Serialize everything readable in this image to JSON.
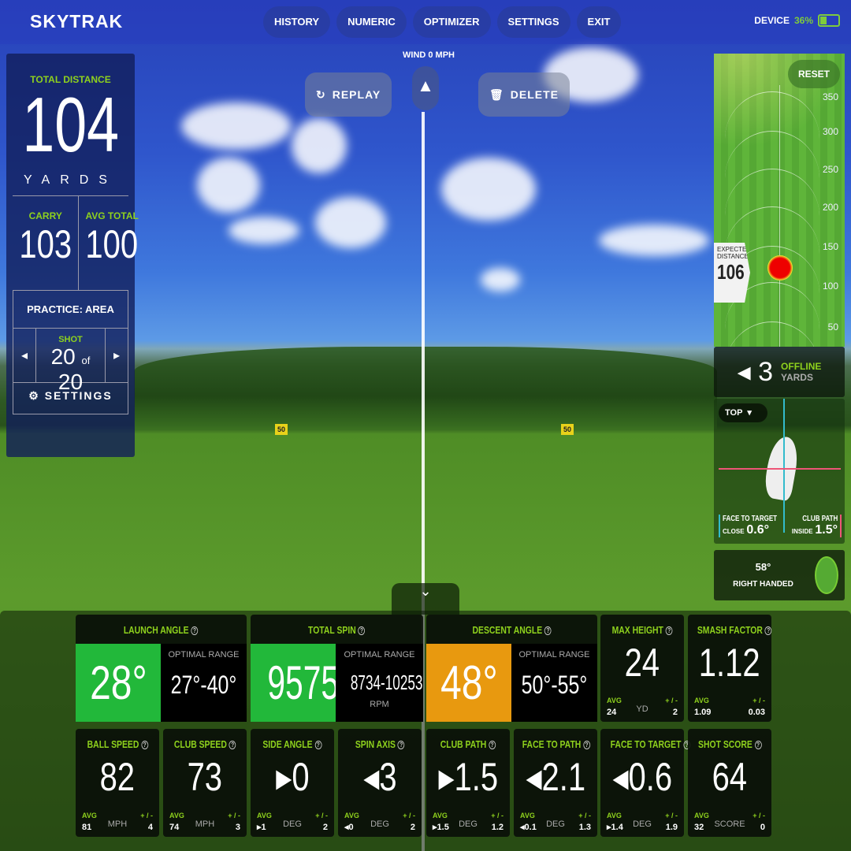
{
  "app": {
    "logo": "SKYTRAK",
    "nav": [
      "HISTORY",
      "NUMERIC",
      "OPTIMIZER",
      "SETTINGS",
      "EXIT"
    ],
    "device_label": "DEVICE",
    "battery": "36%",
    "battery_level": 0.36
  },
  "scene": {
    "wind": "WIND 0 MPH",
    "replay": "REPLAY",
    "delete": "DELETE",
    "marker": "50"
  },
  "left": {
    "total_label": "TOTAL DISTANCE",
    "total": "104",
    "units": "YARDS",
    "carry_label": "CARRY",
    "carry": "103",
    "avg_label": "AVG TOTAL",
    "avg": "100",
    "mode": "PRACTICE: AREA",
    "shot_label": "SHOT",
    "shot": "20",
    "of": "of",
    "shot_total": "20",
    "settings": "SETTINGS"
  },
  "right": {
    "reset": "RESET",
    "ticks": [
      "350",
      "300",
      "250",
      "200",
      "150",
      "100",
      "50"
    ],
    "expected_label1": "EXPECTED",
    "expected_label2": "DISTANCE",
    "expected": "106",
    "offline": "3",
    "offline_label": "OFFLINE",
    "offline_units": "YARDS",
    "view": "TOP",
    "ftt_label": "FACE TO TARGET",
    "ftt_dir": "CLOSE",
    "ftt": "0.6°",
    "cp_label": "CLUB PATH",
    "cp_dir": "INSIDE",
    "cp": "1.5°",
    "loft": "58°",
    "hand": "RIGHT HANDED"
  },
  "colors": {
    "accent": "#8ed11d",
    "good": "#22b83a",
    "warn": "#e8990f"
  },
  "optimal": [
    {
      "label": "LAUNCH ANGLE",
      "value": "28°",
      "range_label": "OPTIMAL RANGE",
      "range": "27°-40°",
      "unit": "",
      "color": "#22b83a"
    },
    {
      "label": "TOTAL SPIN",
      "value": "9575",
      "range_label": "OPTIMAL RANGE",
      "range": "8734-10253",
      "unit": "RPM",
      "color": "#22b83a"
    },
    {
      "label": "DESCENT ANGLE",
      "value": "48°",
      "range_label": "OPTIMAL RANGE",
      "range": "50°-55°",
      "unit": "",
      "color": "#e8990f"
    }
  ],
  "stats": [
    {
      "label": "MAX HEIGHT",
      "value": "24",
      "unit": "YD",
      "avg": "24",
      "pm": "2"
    },
    {
      "label": "SMASH FACTOR",
      "value": "1.12",
      "unit": "",
      "avg": "1.09",
      "pm": "0.03"
    },
    {
      "label": "BALL SPEED",
      "value": "82",
      "unit": "MPH",
      "avg": "81",
      "pm": "4"
    },
    {
      "label": "CLUB SPEED",
      "value": "73",
      "unit": "MPH",
      "avg": "74",
      "pm": "3"
    },
    {
      "label": "SIDE ANGLE",
      "value": "▸0",
      "unit": "DEG",
      "avg": "▸1",
      "pm": "2"
    },
    {
      "label": "SPIN AXIS",
      "value": "◂3",
      "unit": "DEG",
      "avg": "◂0",
      "pm": "2"
    },
    {
      "label": "CLUB PATH",
      "value": "▸1.5",
      "unit": "DEG",
      "avg": "▸1.5",
      "pm": "1.2"
    },
    {
      "label": "FACE TO PATH",
      "value": "◂2.1",
      "unit": "DEG",
      "avg": "◂0.1",
      "pm": "1.3"
    },
    {
      "label": "FACE TO TARGET",
      "value": "◂0.6",
      "unit": "DEG",
      "avg": "▸1.4",
      "pm": "1.9"
    },
    {
      "label": "SHOT SCORE",
      "value": "64",
      "unit": "SCORE",
      "avg": "32",
      "pm": "0"
    }
  ],
  "avg_label": "AVG",
  "pm_label": "+ / -"
}
